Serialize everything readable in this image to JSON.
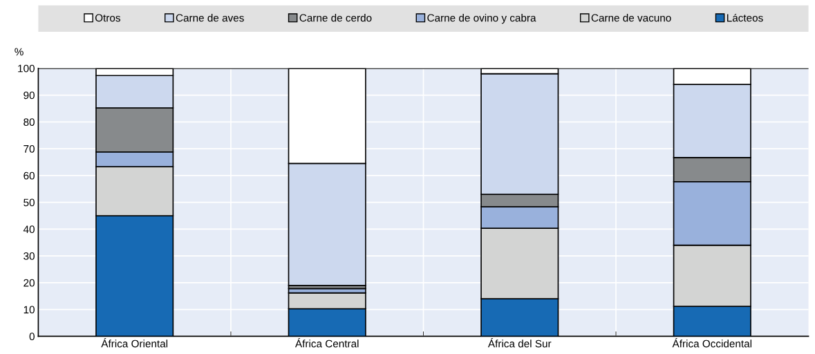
{
  "chart_data": {
    "type": "bar",
    "stacked": true,
    "ylabel": "%",
    "categories": [
      "África Oriental",
      "África Central",
      "África del Sur",
      "África Occidental"
    ],
    "series": [
      {
        "name": "Lácteos",
        "color": "#176ab4",
        "values": [
          45,
          10.3,
          14,
          11.2
        ]
      },
      {
        "name": "Carne de vacuno",
        "color": "#d3d4d3",
        "values": [
          18.3,
          5.9,
          26.3,
          22.8
        ]
      },
      {
        "name": "Carne de ovino y cabra",
        "color": "#99b1dc",
        "values": [
          5.5,
          1.6,
          8,
          23.7
        ]
      },
      {
        "name": "Carne de cerdo",
        "color": "#878a8c",
        "values": [
          16.4,
          1.2,
          4.7,
          9
        ]
      },
      {
        "name": "Carne de aves",
        "color": "#ccd8ee",
        "values": [
          12.1,
          45.5,
          45,
          27.3
        ]
      },
      {
        "name": "Otros",
        "color": "#ffffff",
        "values": [
          2.7,
          35.5,
          2,
          6
        ]
      }
    ],
    "ylim": [
      0,
      100
    ],
    "yticks": [
      0,
      10,
      20,
      30,
      40,
      50,
      60,
      70,
      80,
      90,
      100
    ],
    "grid": true,
    "legend": "top"
  }
}
